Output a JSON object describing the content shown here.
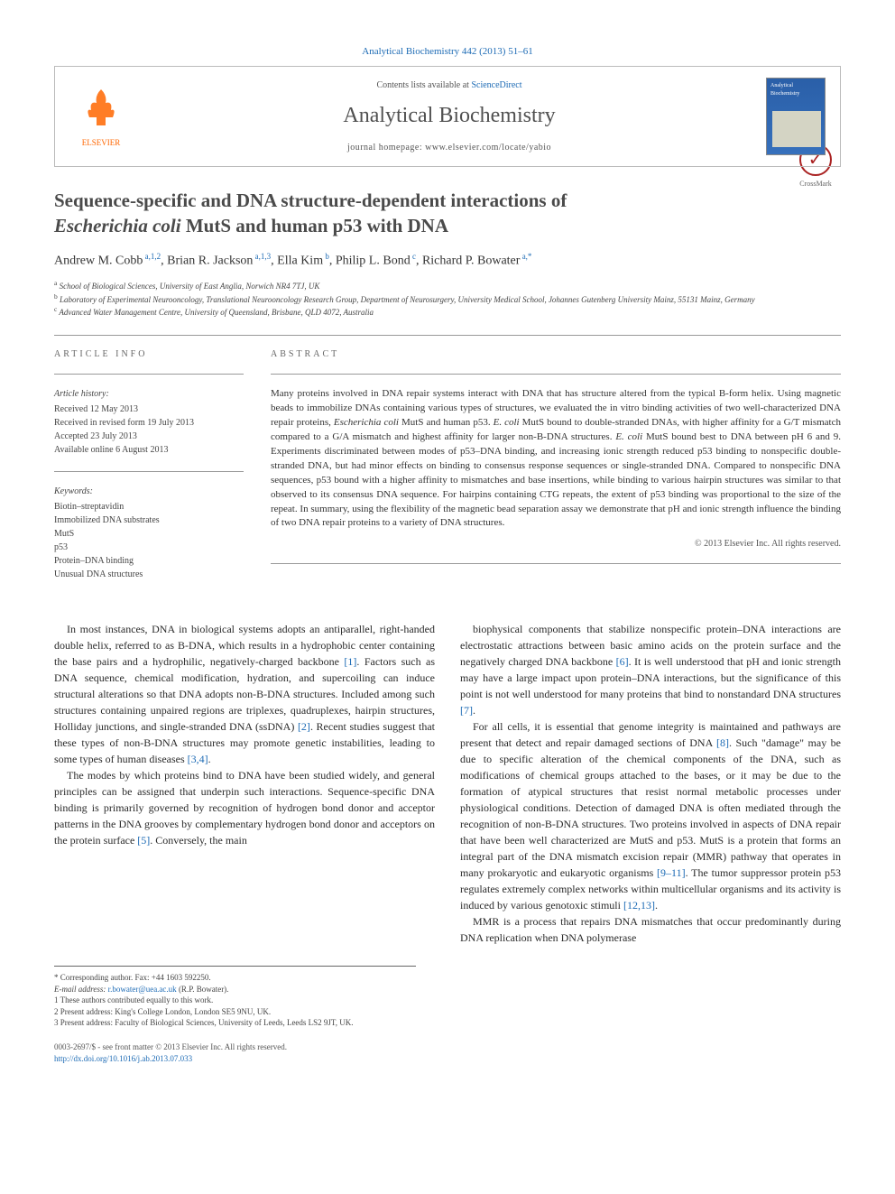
{
  "header": {
    "citation": "Analytical Biochemistry 442 (2013) 51–61",
    "contents_prefix": "Contents lists available at ",
    "contents_link": "ScienceDirect",
    "journal_name": "Analytical Biochemistry",
    "homepage_label": "journal homepage: www.elsevier.com/locate/yabio",
    "publisher": "ELSEVIER",
    "cover_title": "Analytical Biochemistry"
  },
  "crossmark": {
    "label": "CrossMark"
  },
  "title_line1": "Sequence-specific and DNA structure-dependent interactions of",
  "title_line2_italic": "Escherichia coli",
  "title_line2_rest": " MutS and human p53 with DNA",
  "authors_html": "Andrew M. Cobb",
  "authors": [
    {
      "name": "Andrew M. Cobb",
      "sup": "a,1,2"
    },
    {
      "name": "Brian R. Jackson",
      "sup": "a,1,3"
    },
    {
      "name": "Ella Kim",
      "sup": "b"
    },
    {
      "name": "Philip L. Bond",
      "sup": "c"
    },
    {
      "name": "Richard P. Bowater",
      "sup": "a,*"
    }
  ],
  "affiliations": [
    {
      "sup": "a",
      "text": "School of Biological Sciences, University of East Anglia, Norwich NR4 7TJ, UK"
    },
    {
      "sup": "b",
      "text": "Laboratory of Experimental Neurooncology, Translational Neurooncology Research Group, Department of Neurosurgery, University Medical School, Johannes Gutenberg University Mainz, 55131 Mainz, Germany"
    },
    {
      "sup": "c",
      "text": "Advanced Water Management Centre, University of Queensland, Brisbane, QLD 4072, Australia"
    }
  ],
  "info": {
    "label": "ARTICLE INFO",
    "history_title": "Article history:",
    "history": [
      "Received 12 May 2013",
      "Received in revised form 19 July 2013",
      "Accepted 23 July 2013",
      "Available online 6 August 2013"
    ],
    "keywords_title": "Keywords:",
    "keywords": [
      "Biotin–streptavidin",
      "Immobilized DNA substrates",
      "MutS",
      "p53",
      "Protein–DNA binding",
      "Unusual DNA structures"
    ]
  },
  "abstract": {
    "label": "ABSTRACT",
    "text": "Many proteins involved in DNA repair systems interact with DNA that has structure altered from the typical B-form helix. Using magnetic beads to immobilize DNAs containing various types of structures, we evaluated the in vitro binding activities of two well-characterized DNA repair proteins, Escherichia coli MutS and human p53. E. coli MutS bound to double-stranded DNAs, with higher affinity for a G/T mismatch compared to a G/A mismatch and highest affinity for larger non-B-DNA structures. E. coli MutS bound best to DNA between pH 6 and 9. Experiments discriminated between modes of p53–DNA binding, and increasing ionic strength reduced p53 binding to nonspecific double-stranded DNA, but had minor effects on binding to consensus response sequences or single-stranded DNA. Compared to nonspecific DNA sequences, p53 bound with a higher affinity to mismatches and base insertions, while binding to various hairpin structures was similar to that observed to its consensus DNA sequence. For hairpins containing CTG repeats, the extent of p53 binding was proportional to the size of the repeat. In summary, using the flexibility of the magnetic bead separation assay we demonstrate that pH and ionic strength influence the binding of two DNA repair proteins to a variety of DNA structures.",
    "copyright": "© 2013 Elsevier Inc. All rights reserved."
  },
  "body": {
    "left": [
      "In most instances, DNA in biological systems adopts an antiparallel, right-handed double helix, referred to as B-DNA, which results in a hydrophobic center containing the base pairs and a hydrophilic, negatively-charged backbone [1]. Factors such as DNA sequence, chemical modification, hydration, and supercoiling can induce structural alterations so that DNA adopts non-B-DNA structures. Included among such structures containing unpaired regions are triplexes, quadruplexes, hairpin structures, Holliday junctions, and single-stranded DNA (ssDNA) [2]. Recent studies suggest that these types of non-B-DNA structures may promote genetic instabilities, leading to some types of human diseases [3,4].",
      "The modes by which proteins bind to DNA have been studied widely, and general principles can be assigned that underpin such interactions. Sequence-specific DNA binding is primarily governed by recognition of hydrogen bond donor and acceptor patterns in the DNA grooves by complementary hydrogen bond donor and acceptors on the protein surface [5]. Conversely, the main"
    ],
    "right": [
      "biophysical components that stabilize nonspecific protein–DNA interactions are electrostatic attractions between basic amino acids on the protein surface and the negatively charged DNA backbone [6]. It is well understood that pH and ionic strength may have a large impact upon protein–DNA interactions, but the significance of this point is not well understood for many proteins that bind to nonstandard DNA structures [7].",
      "For all cells, it is essential that genome integrity is maintained and pathways are present that detect and repair damaged sections of DNA [8]. Such \"damage\" may be due to specific alteration of the chemical components of the DNA, such as modifications of chemical groups attached to the bases, or it may be due to the formation of atypical structures that resist normal metabolic processes under physiological conditions. Detection of damaged DNA is often mediated through the recognition of non-B-DNA structures. Two proteins involved in aspects of DNA repair that have been well characterized are MutS and p53. MutS is a protein that forms an integral part of the DNA mismatch excision repair (MMR) pathway that operates in many prokaryotic and eukaryotic organisms [9–11]. The tumor suppressor protein p53 regulates extremely complex networks within multicellular organisms and its activity is induced by various genotoxic stimuli [12,13].",
      "MMR is a process that repairs DNA mismatches that occur predominantly during DNA replication when DNA polymerase"
    ]
  },
  "footnotes": {
    "corr": "* Corresponding author. Fax: +44 1603 592250.",
    "email_label": "E-mail address: ",
    "email": "r.bowater@uea.ac.uk",
    "email_suffix": " (R.P. Bowater).",
    "n1": "1 These authors contributed equally to this work.",
    "n2": "2 Present address: King's College London, London SE5 9NU, UK.",
    "n3": "3 Present address: Faculty of Biological Sciences, University of Leeds, Leeds LS2 9JT, UK."
  },
  "footer": {
    "line1": "0003-2697/$ - see front matter © 2013 Elsevier Inc. All rights reserved.",
    "doi": "http://dx.doi.org/10.1016/j.ab.2013.07.033"
  },
  "colors": {
    "link": "#1d6bb5",
    "elsevier": "#ff6600",
    "text": "#333333",
    "border": "#bbbbbb"
  },
  "typography": {
    "title_fontsize": 21,
    "journal_fontsize": 24,
    "body_fontsize": 12,
    "abstract_fontsize": 11,
    "footnote_fontsize": 9
  }
}
